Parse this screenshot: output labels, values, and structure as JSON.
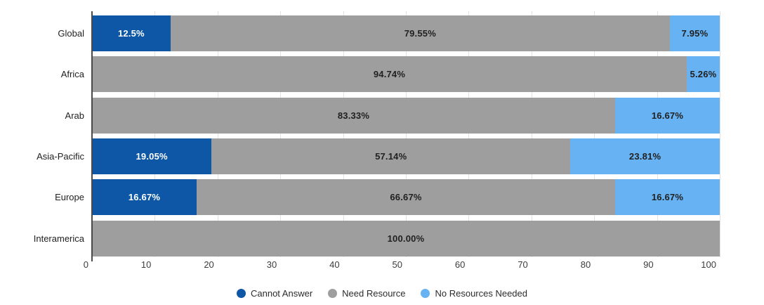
{
  "chart_data": {
    "type": "bar",
    "variant": "horizontal-stacked",
    "title": "",
    "xlabel": "",
    "ylabel": "",
    "grid": true,
    "categories": [
      "Global",
      "Africa",
      "Arab",
      "Asia-Pacific",
      "Europe",
      "Interamerica"
    ],
    "series": [
      {
        "name": "Cannot Answer",
        "color": "#0d57a6",
        "label_color": "#ffffff",
        "values": [
          12.5,
          0,
          0,
          19.05,
          16.67,
          0
        ],
        "labels": [
          "12.5%",
          "",
          "",
          "19.05%",
          "16.67%",
          ""
        ]
      },
      {
        "name": "Need Resource",
        "color": "#9e9e9e",
        "label_color": "#212121",
        "values": [
          79.55,
          94.74,
          83.33,
          57.14,
          66.67,
          100
        ],
        "labels": [
          "79.55%",
          "94.74%",
          "83.33%",
          "57.14%",
          "66.67%",
          "100.00%"
        ]
      },
      {
        "name": "No Resources Needed",
        "color": "#67b2f2",
        "label_color": "#212121",
        "values": [
          7.95,
          5.26,
          16.67,
          23.81,
          16.67,
          0
        ],
        "labels": [
          "7.95%",
          "5.26%",
          "16.67%",
          "23.81%",
          "16.67%",
          ""
        ]
      }
    ],
    "x_axis": {
      "min": 0,
      "max": 100,
      "ticks": [
        "0",
        "10",
        "20",
        "30",
        "40",
        "50",
        "60",
        "70",
        "80",
        "90",
        "100"
      ]
    },
    "legend": {
      "position": "bottom",
      "entries": [
        "Cannot Answer",
        "Need Resource",
        "No Resources Needed"
      ]
    },
    "style": {
      "gridline_color": "#e2e2e2",
      "axis_line_color": "#4a4a4a",
      "tick_label_color": "#3c3c3c",
      "category_label_color": "#212121",
      "background": "#ffffff"
    }
  }
}
